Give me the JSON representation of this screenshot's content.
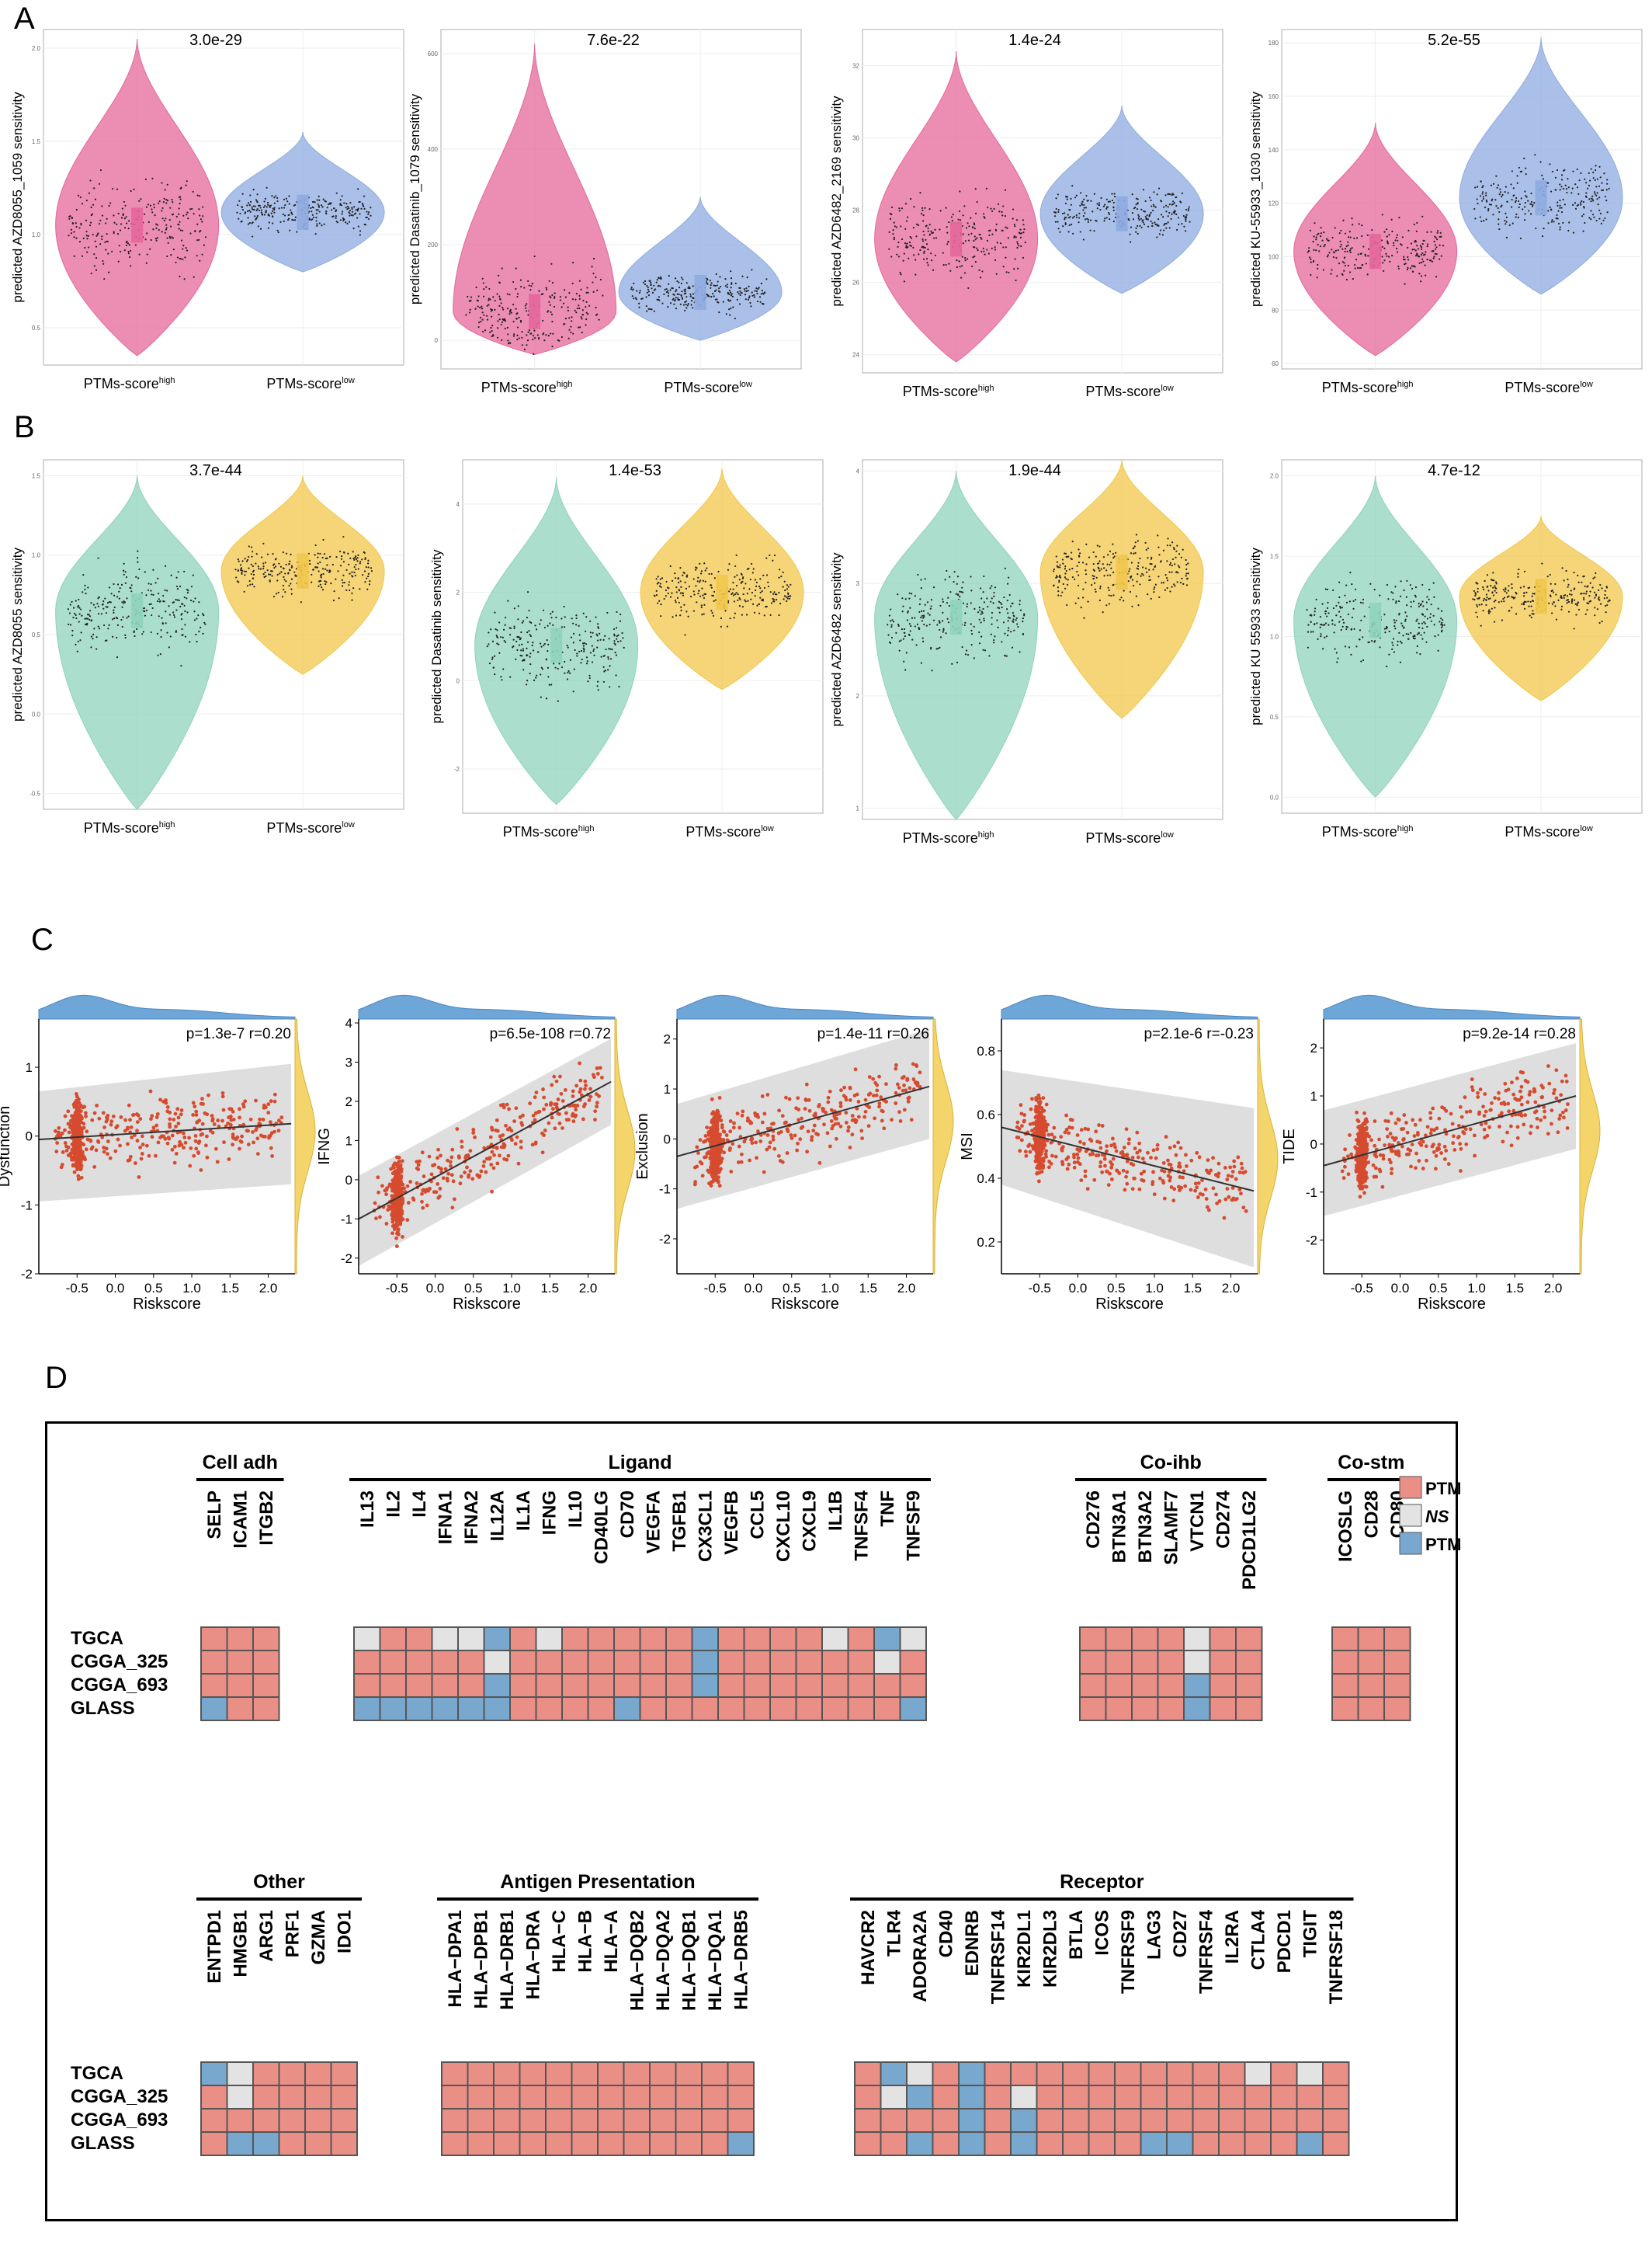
{
  "panels": {
    "a": "A",
    "b": "B",
    "c": "C",
    "d": "D"
  },
  "groups": {
    "high": "PTMs-score",
    "low": "PTMs-score",
    "high_sup": "high",
    "low_sup": "low"
  },
  "colors": {
    "a_high": "#e6679a",
    "a_low": "#8fabe0",
    "b_high": "#8fd3bc",
    "b_low": "#f1c74b",
    "heat_high": "#ea8f86",
    "heat_ns": "#e3e3e3",
    "heat_low": "#79a8cf",
    "scatter": "#d64b2f",
    "band": "#d6d6d6",
    "top_density": "#6ea6d8",
    "right_density": "#f3d56b"
  },
  "chart_data": [
    {
      "type": "violin",
      "panel": "A",
      "ylabel": "predicted AZD8055_1059 sensitivity",
      "pvalue": "3.0e-29",
      "ylim": [
        0.3,
        2.1
      ],
      "yticks": [
        "0.5",
        "1.0",
        "1.5",
        "2.0"
      ],
      "groups": [
        {
          "median": 1.05,
          "min": 0.35,
          "max": 2.05
        },
        {
          "median": 1.12,
          "min": 0.8,
          "max": 1.55
        }
      ]
    },
    {
      "type": "violin",
      "panel": "A",
      "ylabel": "predicted Dasatinib_1079 sensitivity",
      "pvalue": "7.6e-22",
      "ylim": [
        -60,
        650
      ],
      "yticks": [
        "0",
        "200",
        "400",
        "600"
      ],
      "groups": [
        {
          "median": 60,
          "min": -30,
          "max": 620
        },
        {
          "median": 100,
          "min": 0,
          "max": 300
        }
      ]
    },
    {
      "type": "violin",
      "panel": "A",
      "ylabel": "predicted AZD6482_2169 sensitivity",
      "pvalue": "1.4e-24",
      "ylim": [
        23.5,
        33
      ],
      "yticks": [
        "24",
        "26",
        "28",
        "30",
        "32"
      ],
      "groups": [
        {
          "median": 27.2,
          "min": 23.8,
          "max": 32.4
        },
        {
          "median": 27.9,
          "min": 25.7,
          "max": 30.9
        }
      ]
    },
    {
      "type": "violin",
      "panel": "A",
      "ylabel": "predicted KU-55933_1030 sensitivity",
      "pvalue": "5.2e-55",
      "ylim": [
        58,
        185
      ],
      "yticks": [
        "60",
        "80",
        "100",
        "120",
        "140",
        "160",
        "180"
      ],
      "groups": [
        {
          "median": 102,
          "min": 63,
          "max": 150
        },
        {
          "median": 122,
          "min": 86,
          "max": 182
        }
      ]
    },
    {
      "type": "violin",
      "panel": "B",
      "ylabel": "predicted AZD8055 sensitivity",
      "pvalue": "3.7e-44",
      "ylim": [
        -0.6,
        1.6
      ],
      "yticks": [
        "-0.5",
        "0.0",
        "0.5",
        "1.0",
        "1.5"
      ],
      "groups": [
        {
          "median": 0.65,
          "min": -0.6,
          "max": 1.5
        },
        {
          "median": 0.9,
          "min": 0.25,
          "max": 1.5
        }
      ]
    },
    {
      "type": "violin",
      "panel": "B",
      "ylabel": "predicted Dasatinib sensitivity",
      "pvalue": "1.4e-53",
      "ylim": [
        -3,
        5
      ],
      "yticks": [
        "-2",
        "0",
        "2",
        "4"
      ],
      "groups": [
        {
          "median": 0.8,
          "min": -2.8,
          "max": 4.6
        },
        {
          "median": 2.0,
          "min": -0.2,
          "max": 4.8
        }
      ]
    },
    {
      "type": "violin",
      "panel": "B",
      "ylabel": "predicted AZD6482 sensitivity",
      "pvalue": "1.9e-44",
      "ylim": [
        0.9,
        4.1
      ],
      "yticks": [
        "1",
        "2",
        "3",
        "4"
      ],
      "groups": [
        {
          "median": 2.7,
          "min": 0.9,
          "max": 4.0
        },
        {
          "median": 3.1,
          "min": 1.8,
          "max": 4.1
        }
      ]
    },
    {
      "type": "violin",
      "panel": "B",
      "ylabel": "predicted KU 55933 sensitivity",
      "pvalue": "4.7e-12",
      "ylim": [
        -0.1,
        2.1
      ],
      "yticks": [
        "0.0",
        "0.5",
        "1.0",
        "1.5",
        "2.0"
      ],
      "groups": [
        {
          "median": 1.1,
          "min": 0.0,
          "max": 2.0
        },
        {
          "median": 1.25,
          "min": 0.6,
          "max": 1.75
        }
      ]
    },
    {
      "type": "scatter",
      "panel": "C",
      "xlabel": "Riskscore",
      "ylabel": "Dysfunction",
      "stat": "p=1.3e-7 r=0.20",
      "xlim": [
        -1.0,
        2.35
      ],
      "ylim": [
        -2.0,
        1.7
      ],
      "xticks": [
        "-0.5",
        "0.0",
        "0.5",
        "1.0",
        "1.5",
        "2.0"
      ],
      "yticks": [
        "-2",
        "-1",
        "0",
        "1"
      ],
      "fit": [
        [
          -1.0,
          -0.05
        ],
        [
          2.3,
          0.18
        ]
      ],
      "band": [
        [
          -1.0,
          -0.95,
          0.65
        ],
        [
          2.3,
          -0.7,
          1.05
        ]
      ]
    },
    {
      "type": "scatter",
      "panel": "C",
      "xlabel": "Riskscore",
      "ylabel": "IFNG",
      "stat": "p=6.5e-108 r=0.72",
      "xlim": [
        -1.0,
        2.35
      ],
      "ylim": [
        -2.4,
        4.1
      ],
      "xticks": [
        "-0.5",
        "0.0",
        "0.5",
        "1.0",
        "1.5",
        "2.0"
      ],
      "yticks": [
        "-2",
        "-1",
        "0",
        "1",
        "2",
        "3",
        "4"
      ],
      "fit": [
        [
          -1.0,
          -1.0
        ],
        [
          2.3,
          2.5
        ]
      ],
      "band": [
        [
          -1.0,
          -2.2,
          0.1
        ],
        [
          2.3,
          1.4,
          3.6
        ]
      ]
    },
    {
      "type": "scatter",
      "panel": "C",
      "xlabel": "Riskscore",
      "ylabel": "Exclusion",
      "stat": "p=1.4e-11 r=0.26",
      "xlim": [
        -1.0,
        2.35
      ],
      "ylim": [
        -2.7,
        2.4
      ],
      "xticks": [
        "-0.5",
        "0.0",
        "0.5",
        "1.0",
        "1.5",
        "2.0"
      ],
      "yticks": [
        "-2",
        "-1",
        "0",
        "1",
        "2"
      ],
      "fit": [
        [
          -1.0,
          -0.35
        ],
        [
          2.3,
          1.05
        ]
      ],
      "band": [
        [
          -1.0,
          -1.4,
          0.7
        ],
        [
          2.3,
          0.0,
          2.2
        ]
      ]
    },
    {
      "type": "scatter",
      "panel": "C",
      "xlabel": "Riskscore",
      "ylabel": "MSI",
      "stat": "p=2.1e-6 r=-0.23",
      "xlim": [
        -1.0,
        2.35
      ],
      "ylim": [
        0.1,
        0.9
      ],
      "xticks": [
        "-0.5",
        "0.0",
        "0.5",
        "1.0",
        "1.5",
        "2.0"
      ],
      "yticks": [
        "0.2",
        "0.4",
        "0.6",
        "0.8"
      ],
      "fit": [
        [
          -1.0,
          0.56
        ],
        [
          2.3,
          0.36
        ]
      ],
      "band": [
        [
          -1.0,
          0.38,
          0.74
        ],
        [
          2.3,
          0.12,
          0.62
        ]
      ]
    },
    {
      "type": "scatter",
      "panel": "C",
      "xlabel": "Riskscore",
      "ylabel": "TIDE",
      "stat": "p=9.2e-14 r=0.28",
      "xlim": [
        -1.0,
        2.35
      ],
      "ylim": [
        -2.7,
        2.6
      ],
      "xticks": [
        "-0.5",
        "0.0",
        "0.5",
        "1.0",
        "1.5",
        "2.0"
      ],
      "yticks": [
        "-2",
        "-1",
        "0",
        "1",
        "2"
      ],
      "fit": [
        [
          -1.0,
          -0.45
        ],
        [
          2.3,
          1.0
        ]
      ],
      "band": [
        [
          -1.0,
          -1.5,
          0.7
        ],
        [
          2.3,
          -0.1,
          2.1
        ]
      ]
    },
    {
      "type": "heatmap",
      "panel": "D",
      "rows": [
        "TGCA",
        "CGGA_325",
        "CGGA_693",
        "GLASS"
      ],
      "legend": {
        "high": "PTMs-score",
        "high_sup": "high",
        "ns": "NS",
        "low": "PTMs-score",
        "low_sup": "low"
      },
      "blocks": [
        {
          "title": "Cell adh",
          "genes": [
            "SELP",
            "ICAM1",
            "ITGB2"
          ],
          "cells": [
            "HHH",
            "HHH",
            "HHH",
            "LHH"
          ]
        },
        {
          "title": "Ligand",
          "genes": [
            "IL13",
            "IL2",
            "IL4",
            "IFNA1",
            "IFNA2",
            "IL12A",
            "IL1A",
            "IFNG",
            "IL10",
            "CD40LG",
            "CD70",
            "VEGFA",
            "TGFB1",
            "CX3CL1",
            "VEGFB",
            "CCL5",
            "CXCL10",
            "CXCL9",
            "IL1B",
            "TNFSF4",
            "TNF",
            "TNFSF9"
          ],
          "cells": [
            "NHHNNLHNHHHHHLHHHHNHLN",
            "HHHHHNHHHHHHHLHHHHHHNH",
            "HHHHHLHHHHHHHLHHHHHHHH",
            "LLLLLLHHHHLHHHHHHHHHHL"
          ]
        },
        {
          "title": "Co-ihb",
          "genes": [
            "CD276",
            "BTN3A1",
            "BTN3A2",
            "SLAMF7",
            "VTCN1",
            "CD274",
            "PDCD1LG2"
          ],
          "cells": [
            "HHHHNHH",
            "HHHHNHH",
            "HHHHLHH",
            "HHHHLHH"
          ]
        },
        {
          "title": "Co-stm",
          "genes": [
            "ICOSLG",
            "CD28",
            "CD80"
          ],
          "cells": [
            "HHH",
            "HHH",
            "HHH",
            "HHH"
          ]
        },
        {
          "title": "Other",
          "genes": [
            "ENTPD1",
            "HMGB1",
            "ARG1",
            "PRF1",
            "GZMA",
            "IDO1"
          ],
          "cells": [
            "LNHHHH",
            "HNHHHH",
            "HHHHHH",
            "HLLHHH"
          ]
        },
        {
          "title": "Antigen Presentation",
          "genes": [
            "HLA−DPA1",
            "HLA−DPB1",
            "HLA−DRB1",
            "HLA−DRA",
            "HLA−C",
            "HLA−B",
            "HLA−A",
            "HLA−DQB2",
            "HLA−DQA2",
            "HLA−DQB1",
            "HLA−DQA1",
            "HLA−DRB5"
          ],
          "cells": [
            "HHHHHHHHHHHH",
            "HHHHHHHHHHHH",
            "HHHHHHHHHHHH",
            "HHHHHHHHHHHL"
          ]
        },
        {
          "title": "Receptor",
          "genes": [
            "HAVCR2",
            "TLR4",
            "ADORA2A",
            "CD40",
            "EDNRB",
            "TNFRSF14",
            "KIR2DL1",
            "KIR2DL3",
            "BTLA",
            "ICOS",
            "TNFRSF9",
            "LAG3",
            "CD27",
            "TNFRSF4",
            "IL2RA",
            "CTLA4",
            "PDCD1",
            "TIGIT",
            "TNFRSF18"
          ],
          "cells": [
            "HLNHLHHHHHHHHHHNHNH",
            "HNLHLHNHHHHHHHHHHHH",
            "HHHHLHLHHHHHHHHHHHH",
            "HHLHLHLHHHHLLHHHHLH"
          ]
        }
      ]
    }
  ]
}
